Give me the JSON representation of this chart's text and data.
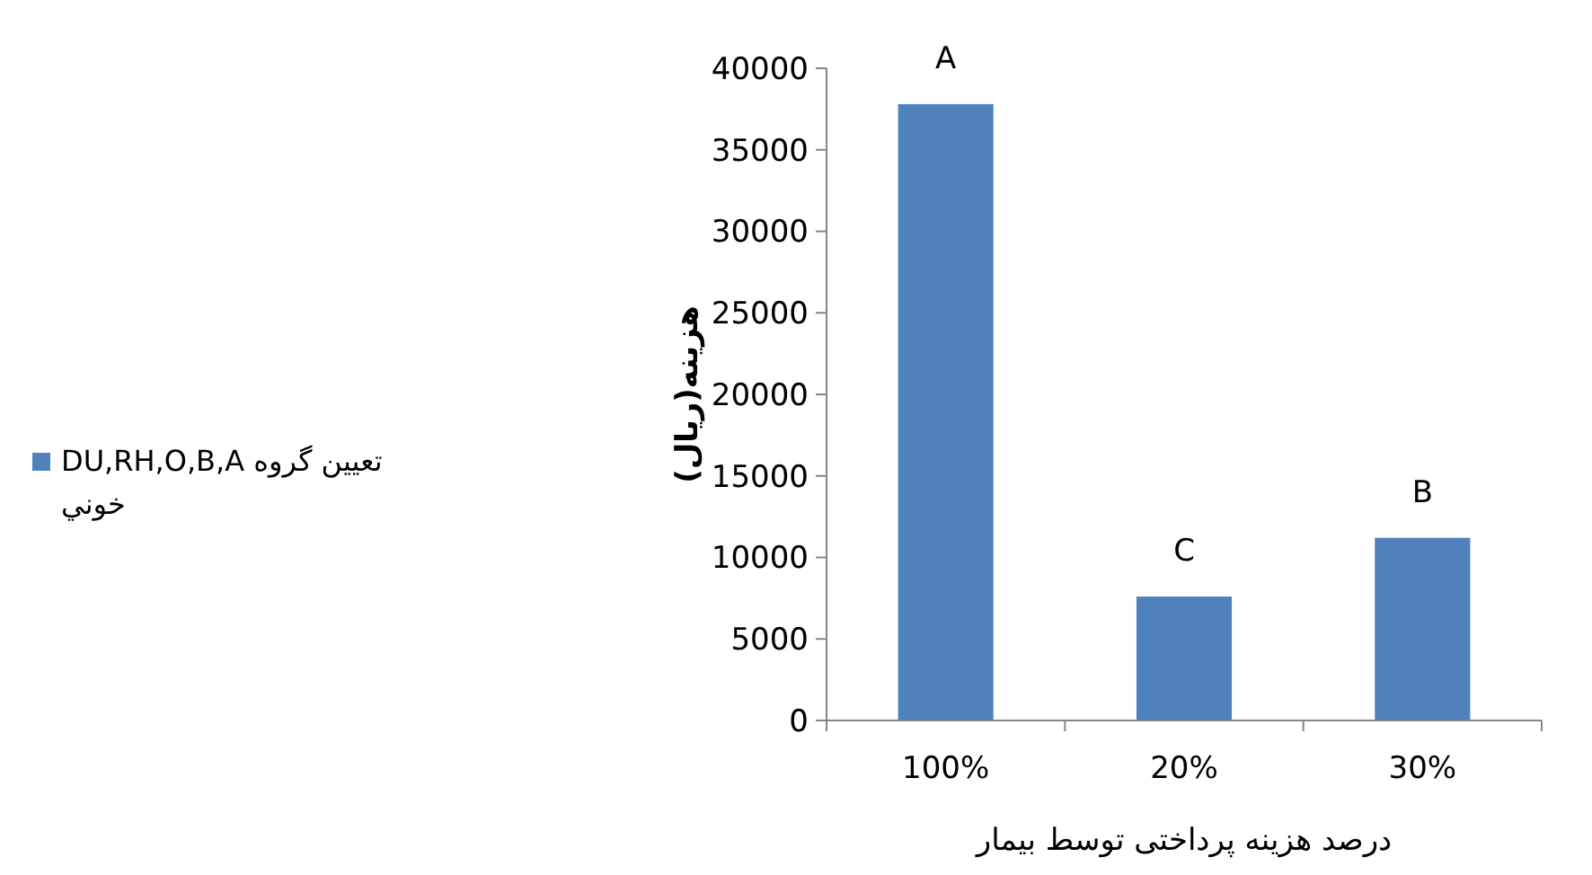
{
  "chart_data": {
    "type": "bar",
    "xlabel": "درصد هزینه پرداختی توسط بیمار",
    "ylabel": "هزینه(ریال)",
    "categories": [
      "100%",
      "20%",
      "30%"
    ],
    "series": [
      {
        "name": "تعيين گروه DU,RH,O,B,A خوني",
        "color": "#4f81bd",
        "values": [
          37800,
          7600,
          11200
        ]
      }
    ],
    "ylim": [
      0,
      40000
    ],
    "yticks": [
      0,
      5000,
      10000,
      15000,
      20000,
      25000,
      30000,
      35000,
      40000
    ],
    "annotations": [
      {
        "text": "A",
        "x": "100%",
        "y": 37800
      },
      {
        "text": "C",
        "x": "20%",
        "y": 7600
      },
      {
        "text": "B",
        "x": "30%",
        "y": 11200
      }
    ],
    "grid": false,
    "legend": "left"
  }
}
